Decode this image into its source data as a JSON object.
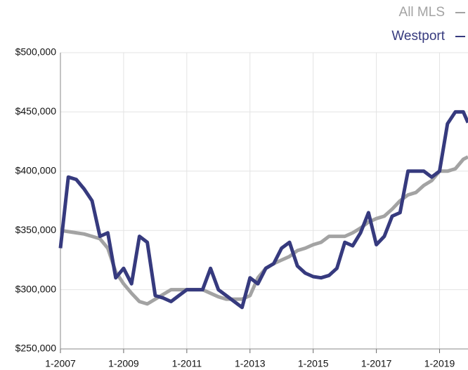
{
  "chart_data": {
    "type": "line",
    "x": [
      2007,
      2007.25,
      2007.5,
      2007.75,
      2008,
      2008.25,
      2008.5,
      2008.75,
      2009,
      2009.25,
      2009.5,
      2009.75,
      2010,
      2010.25,
      2010.5,
      2010.75,
      2011,
      2011.25,
      2011.5,
      2011.75,
      2012,
      2012.25,
      2012.5,
      2012.75,
      2013,
      2013.25,
      2013.5,
      2013.75,
      2014,
      2014.25,
      2014.5,
      2014.75,
      2015,
      2015.25,
      2015.5,
      2015.75,
      2016,
      2016.25,
      2016.5,
      2016.75,
      2017,
      2017.25,
      2017.5,
      2017.75,
      2018,
      2018.25,
      2018.5,
      2018.75,
      2019,
      2019.25,
      2019.5,
      2019.75,
      2019.9
    ],
    "series": [
      {
        "name": "All MLS",
        "color": "#a3a3a3",
        "values": [
          350000,
          349000,
          348000,
          347000,
          345000,
          343000,
          335000,
          315000,
          305000,
          297000,
          290000,
          288000,
          292000,
          296000,
          300000,
          300000,
          300000,
          300000,
          300000,
          297000,
          294000,
          292000,
          292000,
          292000,
          295000,
          310000,
          318000,
          322000,
          325000,
          328000,
          333000,
          335000,
          338000,
          340000,
          345000,
          345000,
          345000,
          348000,
          352000,
          357000,
          360000,
          362000,
          368000,
          375000,
          380000,
          382000,
          388000,
          392000,
          400000,
          400000,
          402000,
          410000,
          412000
        ]
      },
      {
        "name": "Westport",
        "color": "#363a7e",
        "values": [
          335000,
          395000,
          393000,
          385000,
          375000,
          345000,
          348000,
          310000,
          318000,
          305000,
          345000,
          340000,
          295000,
          293000,
          290000,
          295000,
          300000,
          300000,
          300000,
          318000,
          300000,
          295000,
          290000,
          285000,
          310000,
          305000,
          318000,
          322000,
          335000,
          340000,
          320000,
          314000,
          311000,
          310000,
          312000,
          318000,
          340000,
          337000,
          348000,
          365000,
          338000,
          345000,
          362000,
          365000,
          400000,
          400000,
          400000,
          395000,
          400000,
          440000,
          450000,
          450000,
          441000
        ]
      }
    ],
    "xlim": [
      2007,
      2019.9
    ],
    "xticks": [
      {
        "value": 2007,
        "label": "1-2007"
      },
      {
        "value": 2009,
        "label": "1-2009"
      },
      {
        "value": 2011,
        "label": "1-2011"
      },
      {
        "value": 2013,
        "label": "1-2013"
      },
      {
        "value": 2015,
        "label": "1-2015"
      },
      {
        "value": 2017,
        "label": "1-2017"
      },
      {
        "value": 2019,
        "label": "1-2019"
      }
    ],
    "ylim": [
      250000,
      500000
    ],
    "yticks": [
      {
        "value": 250000,
        "label": "$250,000"
      },
      {
        "value": 300000,
        "label": "$300,000"
      },
      {
        "value": 350000,
        "label": "$350,000"
      },
      {
        "value": 400000,
        "label": "$400,000"
      },
      {
        "value": 450000,
        "label": "$450,000"
      },
      {
        "value": 500000,
        "label": "$500,000"
      }
    ],
    "grid": true
  }
}
